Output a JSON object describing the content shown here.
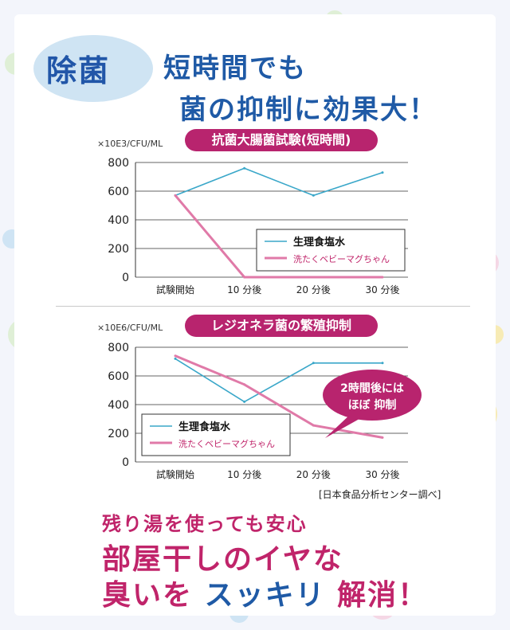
{
  "header": {
    "tag": "除菌",
    "line1": "短時間でも",
    "line2": "菌の抑制に効果大！"
  },
  "chart_data": [
    {
      "type": "line",
      "title": "抗菌大腸菌試験(短時間)",
      "unit_label": "×10E3/CFU/ML",
      "categories": [
        "試験開始",
        "10 分後",
        "20 分後",
        "30 分後"
      ],
      "ylim": [
        0,
        800
      ],
      "yticks": [
        0,
        200,
        400,
        600,
        800
      ],
      "grid": true,
      "legend_position": "center-right",
      "series": [
        {
          "name": "生理食塩水",
          "color": "#3aa7c9",
          "values": [
            570,
            760,
            570,
            730
          ]
        },
        {
          "name": "洗たくベビーマグちゃん",
          "color": "#e07aa8",
          "values": [
            570,
            0,
            0,
            0
          ]
        }
      ]
    },
    {
      "type": "line",
      "title": "レジオネラ菌の繁殖抑制",
      "unit_label": "×10E6/CFU/ML",
      "categories": [
        "試験開始",
        "10 分後",
        "20 分後",
        "30 分後"
      ],
      "ylim": [
        0,
        800
      ],
      "yticks": [
        0,
        200,
        400,
        600,
        800
      ],
      "grid": true,
      "legend_position": "bottom-left",
      "callout": [
        "2時間後には",
        "ほぼ 抑制"
      ],
      "series": [
        {
          "name": "生理食塩水",
          "color": "#3aa7c9",
          "values": [
            720,
            420,
            690,
            690
          ]
        },
        {
          "name": "洗たくベビーマグちゃん",
          "color": "#e07aa8",
          "values": [
            740,
            540,
            255,
            170
          ]
        }
      ]
    }
  ],
  "source": "[日本食品分析センター調べ]",
  "bottom": {
    "line1": "残り湯を使っても安心",
    "line2": "部屋干しのイヤな",
    "line3_a": "臭いを",
    "line3_b": "スッキリ",
    "line3_c": "解消！"
  },
  "colors": {
    "accent": "#b8246e",
    "headline": "#1f5aa6",
    "blob": "#cfe4f3"
  }
}
